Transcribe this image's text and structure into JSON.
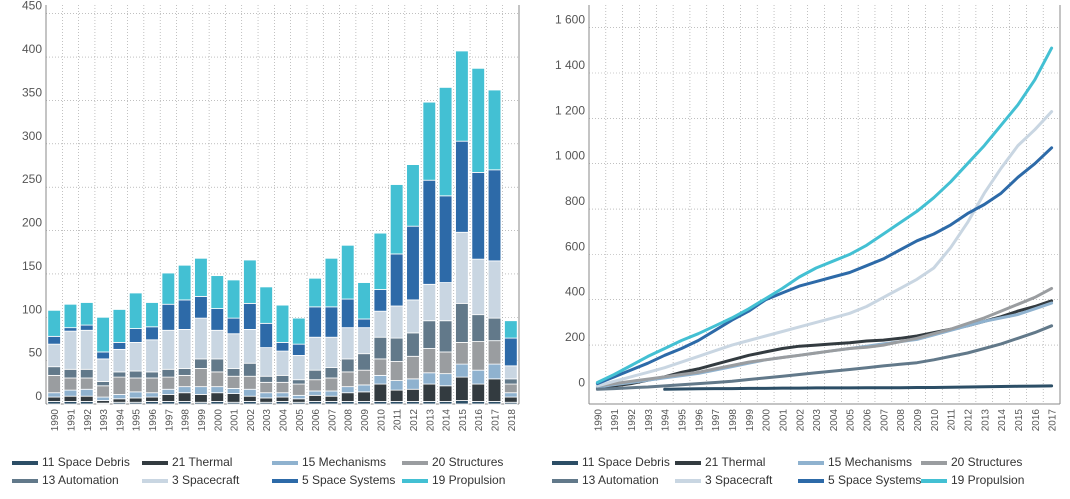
{
  "chart_data": [
    {
      "type": "bar",
      "stacked": true,
      "categories": [
        "1990",
        "1991",
        "1992",
        "1993",
        "1994",
        "1995",
        "1996",
        "1997",
        "1998",
        "1999",
        "2000",
        "2001",
        "2002",
        "2003",
        "2004",
        "2005",
        "2006",
        "2007",
        "2008",
        "2009",
        "2010",
        "2011",
        "2012",
        "2013",
        "2014",
        "2015",
        "2016",
        "2017",
        "2018"
      ],
      "ylim": [
        0,
        460
      ],
      "yticks": [
        0,
        50,
        100,
        150,
        200,
        250,
        300,
        350,
        400,
        450
      ],
      "grid": true,
      "legend_position": "bottom",
      "series": [
        {
          "name": "11 Space Debris",
          "color": "#2c4e66",
          "values": [
            3,
            3,
            3,
            1,
            2,
            2,
            3,
            3,
            3,
            2,
            3,
            2,
            3,
            2,
            3,
            2,
            3,
            3,
            3,
            3,
            3,
            3,
            3,
            3,
            3,
            4,
            3,
            3,
            2
          ]
        },
        {
          "name": "21 Thermal",
          "color": "#333b40",
          "values": [
            5,
            6,
            6,
            3,
            4,
            5,
            5,
            8,
            10,
            9,
            10,
            10,
            6,
            5,
            5,
            4,
            7,
            6,
            10,
            11,
            20,
            13,
            14,
            20,
            18,
            27,
            20,
            26,
            6
          ]
        },
        {
          "name": "15 Mechanisms",
          "color": "#8fb2cf",
          "values": [
            5,
            7,
            8,
            4,
            5,
            7,
            5,
            6,
            7,
            9,
            7,
            6,
            8,
            6,
            5,
            4,
            5,
            6,
            7,
            8,
            10,
            11,
            12,
            13,
            14,
            15,
            16,
            17,
            5
          ]
        },
        {
          "name": "20 Structures",
          "color": "#9a9da0",
          "values": [
            20,
            14,
            13,
            13,
            20,
            16,
            17,
            14,
            13,
            21,
            17,
            14,
            15,
            12,
            12,
            13,
            13,
            15,
            17,
            17,
            19,
            22,
            26,
            28,
            25,
            25,
            33,
            27,
            10
          ]
        },
        {
          "name": "13 Automation",
          "color": "#62798a",
          "values": [
            10,
            10,
            10,
            5,
            6,
            8,
            7,
            9,
            8,
            11,
            15,
            9,
            15,
            7,
            8,
            5,
            11,
            12,
            15,
            19,
            25,
            27,
            27,
            32,
            36,
            45,
            31,
            26,
            6
          ]
        },
        {
          "name": "3 Spacecraft",
          "color": "#c9d6e2",
          "values": [
            26,
            44,
            45,
            26,
            26,
            33,
            37,
            45,
            45,
            47,
            33,
            40,
            39,
            33,
            28,
            28,
            38,
            35,
            36,
            30,
            30,
            37,
            38,
            42,
            44,
            82,
            64,
            66,
            15
          ]
        },
        {
          "name": "5 Space Systems",
          "color": "#2d6aa8",
          "values": [
            9,
            4,
            6,
            8,
            8,
            16,
            15,
            30,
            34,
            25,
            25,
            18,
            30,
            28,
            10,
            13,
            35,
            35,
            33,
            10,
            25,
            60,
            85,
            120,
            100,
            105,
            100,
            105,
            32
          ]
        },
        {
          "name": "19 Propulsion",
          "color": "#43c0d3",
          "values": [
            30,
            27,
            26,
            40,
            38,
            41,
            28,
            36,
            40,
            44,
            38,
            44,
            50,
            42,
            43,
            30,
            33,
            56,
            62,
            42,
            65,
            80,
            71,
            90,
            125,
            104,
            120,
            92,
            20
          ]
        }
      ]
    },
    {
      "type": "line",
      "x": [
        "1990",
        "1991",
        "1992",
        "1993",
        "1994",
        "1995",
        "1996",
        "1997",
        "1998",
        "1999",
        "2000",
        "2001",
        "2002",
        "2003",
        "2004",
        "2005",
        "2006",
        "2007",
        "2008",
        "2009",
        "2010",
        "2011",
        "2012",
        "2013",
        "2014",
        "2015",
        "2016",
        "2017"
      ],
      "ylim": [
        -60,
        1700
      ],
      "yticks": [
        0,
        200,
        400,
        600,
        800,
        1000,
        1200,
        1400,
        1600
      ],
      "ytick_labels": [
        "0",
        "200",
        "400",
        "600",
        "800",
        "1 000",
        "1 200",
        "1 400",
        "1 600"
      ],
      "grid": true,
      "legend_position": "bottom",
      "series": [
        {
          "name": "11 Space Debris",
          "color": "#2c4e66",
          "values": [
            null,
            null,
            null,
            null,
            5,
            6,
            7,
            8,
            8,
            9,
            9,
            10,
            10,
            11,
            11,
            11,
            12,
            12,
            12,
            13,
            13,
            14,
            15,
            16,
            17,
            18,
            19,
            20
          ]
        },
        {
          "name": "21 Thermal",
          "color": "#333b40",
          "values": [
            10,
            20,
            30,
            45,
            60,
            80,
            95,
            115,
            135,
            155,
            170,
            185,
            195,
            200,
            205,
            210,
            218,
            222,
            230,
            240,
            255,
            270,
            285,
            305,
            325,
            350,
            370,
            395
          ]
        },
        {
          "name": "15 Mechanisms",
          "color": "#8fb2cf",
          "values": [
            15,
            25,
            35,
            45,
            55,
            65,
            75,
            90,
            105,
            120,
            135,
            145,
            155,
            165,
            175,
            185,
            195,
            205,
            215,
            225,
            245,
            265,
            285,
            305,
            320,
            335,
            360,
            385
          ]
        },
        {
          "name": "20 Structures",
          "color": "#9a9da0",
          "values": [
            20,
            30,
            40,
            50,
            60,
            70,
            80,
            95,
            110,
            125,
            135,
            145,
            155,
            165,
            175,
            185,
            190,
            200,
            215,
            230,
            250,
            270,
            295,
            320,
            350,
            380,
            410,
            450
          ]
        },
        {
          "name": "13 Automation",
          "color": "#62798a",
          "values": [
            5,
            8,
            12,
            15,
            20,
            25,
            30,
            35,
            40,
            48,
            55,
            62,
            70,
            78,
            85,
            92,
            100,
            108,
            115,
            122,
            135,
            150,
            165,
            185,
            205,
            230,
            255,
            285
          ]
        },
        {
          "name": "3 Spacecraft",
          "color": "#c9d6e2",
          "values": [
            20,
            40,
            60,
            80,
            100,
            125,
            150,
            175,
            200,
            220,
            240,
            260,
            280,
            300,
            320,
            340,
            370,
            410,
            450,
            490,
            540,
            630,
            740,
            870,
            980,
            1080,
            1150,
            1230
          ]
        },
        {
          "name": "5 Space Systems",
          "color": "#2d6aa8",
          "values": [
            30,
            60,
            90,
            120,
            155,
            185,
            220,
            265,
            310,
            350,
            400,
            430,
            460,
            480,
            500,
            520,
            550,
            580,
            620,
            660,
            690,
            730,
            780,
            820,
            870,
            940,
            1000,
            1070
          ]
        },
        {
          "name": "19 Propulsion",
          "color": "#43c0d3",
          "values": [
            35,
            70,
            110,
            150,
            185,
            220,
            250,
            285,
            320,
            360,
            405,
            450,
            500,
            540,
            570,
            600,
            640,
            690,
            740,
            790,
            850,
            920,
            1000,
            1080,
            1170,
            1260,
            1370,
            1510
          ]
        }
      ]
    }
  ]
}
